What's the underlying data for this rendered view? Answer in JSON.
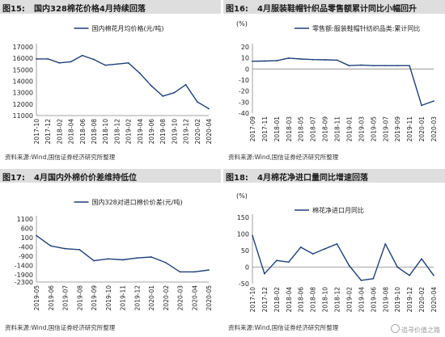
{
  "panels": [
    {
      "num": "图15:",
      "title": "国内328棉花价格4月持续回落",
      "source": "资料来源:Wind,国信证券经济研究所整理",
      "chart_data": {
        "type": "line",
        "ylabel": "",
        "unit": "",
        "ylim": [
          11000,
          17000
        ],
        "yticks": [
          11000,
          12000,
          13000,
          14000,
          15000,
          16000,
          17000
        ],
        "x": [
          "2017-10",
          "2017-12",
          "2018-02",
          "2018-04",
          "2018-06",
          "2018-08",
          "2018-10",
          "2018-12",
          "2019-02",
          "2019-04",
          "2019-06",
          "2019-08",
          "2019-10",
          "2019-12",
          "2020-02",
          "2020-04"
        ],
        "series": [
          {
            "name": "国内棉花月均价格(元/吨)",
            "color": "#1f3f7a",
            "values": [
              15950,
              15950,
              15600,
              15700,
              16250,
              15900,
              15400,
              15500,
              15600,
              14700,
              13600,
              12700,
              13000,
              13700,
              12200,
              11600
            ]
          }
        ]
      }
    },
    {
      "num": "图16:",
      "title": "4月服装鞋帽针织品零售额累计同比小幅回升",
      "source": "资料来源:Wind,国信证券经济研究所整理",
      "chart_data": {
        "type": "line",
        "unit": "(%)",
        "ylim": [
          -40,
          20
        ],
        "yticks": [
          -40,
          -30,
          -20,
          -10,
          0,
          10,
          20
        ],
        "x": [
          "2017-09",
          "2017-11",
          "2018-01",
          "2018-03",
          "2018-05",
          "2018-07",
          "2018-09",
          "2018-11",
          "2019-01",
          "2019-03",
          "2019-05",
          "2019-07",
          "2019-09",
          "2019-11",
          "2020-01",
          "2020-03"
        ],
        "series": [
          {
            "name": "零售额:服装鞋帽针纺织品类:累计同比",
            "color": "#1f3f7a",
            "values": [
              7,
              7.2,
              7.5,
              9.8,
              9,
              8.5,
              8.3,
              8.0,
              3,
              3.5,
              3,
              3,
              3,
              3,
              -33,
              -29
            ]
          }
        ]
      }
    },
    {
      "num": "图17:",
      "title": "4月国内外棉价价差维持低位",
      "source": "资料来源:Wind,国信证券经济研究所整理",
      "chart_data": {
        "type": "line",
        "unit": "",
        "ylim": [
          -2300,
          1100
        ],
        "yticks": [
          -2300,
          -1900,
          -1400,
          -900,
          -400,
          100,
          600,
          1100
        ],
        "x": [
          "2019-05",
          "2019-06",
          "2019-07",
          "2019-08",
          "2019-09",
          "2019-10",
          "2019-11",
          "2019-12",
          "2020-01",
          "2020-02",
          "2020-03",
          "2020-04",
          "2020-05"
        ],
        "series": [
          {
            "name": "国内328对进口棉价价差(元/吨)",
            "color": "#1f3f7a",
            "values": [
              200,
              -350,
              -500,
              -550,
              -1150,
              -1050,
              -1100,
              -1000,
              -950,
              -1250,
              -1750,
              -1750,
              -1650
            ]
          }
        ]
      }
    },
    {
      "num": "图18:",
      "title": "4月棉花净进口量同比增速回落",
      "source": "资料来源:Wind,国信证券经济研究所整理",
      "chart_data": {
        "type": "line",
        "unit": "(%)",
        "ylim": [
          -50,
          150
        ],
        "yticks": [
          -50,
          0,
          50,
          100,
          150
        ],
        "x": [
          "2017-10",
          "2017-12",
          "2018-02",
          "2018-04",
          "2018-06",
          "2018-08",
          "2018-10",
          "2018-12",
          "2019-02",
          "2019-04",
          "2019-06",
          "2019-08",
          "2019-10",
          "2019-12",
          "2020-02",
          "2020-04"
        ],
        "series": [
          {
            "name": "棉花净进口月同比",
            "color": "#1f3f7a",
            "values": [
              95,
              -20,
              20,
              15,
              60,
              40,
              55,
              70,
              5,
              -40,
              -35,
              70,
              0,
              -25,
              25,
              -25
            ]
          }
        ]
      }
    }
  ],
  "watermark": "追寻价值之路"
}
